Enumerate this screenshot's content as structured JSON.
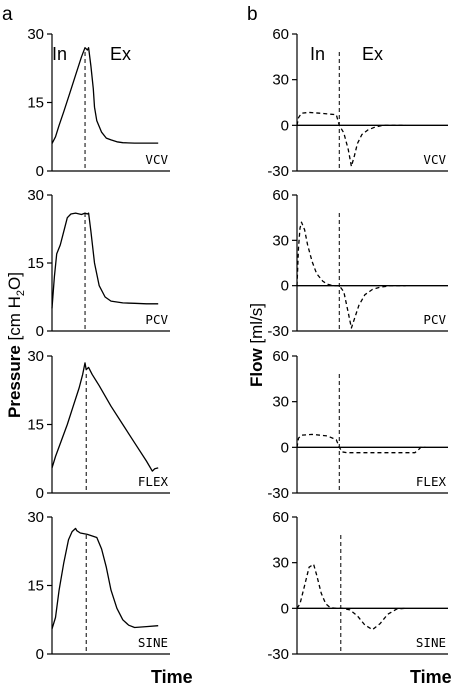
{
  "figure": {
    "panel_a": "a",
    "panel_b": "b",
    "pressure_ylabel_bold": "Pressure",
    "pressure_ylabel_rest": "[cm H",
    "pressure_ylabel_sub": "2",
    "pressure_ylabel_end": "O]",
    "flow_ylabel_bold": "Flow",
    "flow_ylabel_rest": "[ml/s]",
    "xlabel": "Time",
    "phase_in": "In",
    "phase_ex": "Ex"
  },
  "chart_data": [
    {
      "type": "line",
      "panel": "a",
      "mode": "VCV",
      "xlabel": "Time",
      "ylim": [
        0,
        30
      ],
      "yticks": [
        0,
        15,
        30
      ],
      "series": [
        {
          "style": "solid",
          "x": [
            0,
            0.03,
            0.06,
            0.1,
            0.15,
            0.2,
            0.25,
            0.28,
            0.3,
            0.31,
            0.33,
            0.35,
            0.36,
            0.38,
            0.42,
            0.46,
            0.5,
            0.55,
            0.6,
            0.7,
            0.8,
            0.9
          ],
          "y": [
            6,
            7.5,
            10,
            13,
            17,
            21,
            25,
            27,
            26.5,
            27,
            23,
            18,
            14,
            11,
            8.5,
            7.2,
            6.8,
            6.4,
            6.2,
            6.1,
            6.1,
            6.1
          ]
        }
      ],
      "divider_x": 0.28
    },
    {
      "type": "line",
      "panel": "a",
      "mode": "PCV",
      "xlabel": "Time",
      "ylim": [
        0,
        30
      ],
      "yticks": [
        0,
        15,
        30
      ],
      "series": [
        {
          "style": "solid",
          "x": [
            0,
            0.02,
            0.04,
            0.07,
            0.1,
            0.13,
            0.16,
            0.2,
            0.25,
            0.28,
            0.3,
            0.31,
            0.33,
            0.36,
            0.4,
            0.45,
            0.5,
            0.6,
            0.7,
            0.8,
            0.9
          ],
          "y": [
            5,
            12,
            17,
            19,
            22,
            25,
            25.8,
            26,
            25.7,
            26,
            25.8,
            26,
            22,
            15,
            10,
            7.5,
            6.6,
            6.2,
            6.1,
            6,
            6
          ]
        }
      ],
      "divider_x": 0.28
    },
    {
      "type": "line",
      "panel": "a",
      "mode": "FLEX",
      "xlabel": "Time",
      "ylim": [
        0,
        30
      ],
      "yticks": [
        0,
        15,
        30
      ],
      "series": [
        {
          "style": "solid",
          "x": [
            0,
            0.03,
            0.08,
            0.13,
            0.18,
            0.23,
            0.26,
            0.28,
            0.29,
            0.31,
            0.34,
            0.4,
            0.5,
            0.6,
            0.7,
            0.8,
            0.85,
            0.87,
            0.9
          ],
          "y": [
            5.5,
            8,
            11.5,
            15,
            19,
            23,
            26,
            28.5,
            27,
            27.5,
            26,
            23.5,
            19,
            15,
            11,
            7,
            4.8,
            5.3,
            5.5
          ]
        }
      ],
      "divider_x": 0.29
    },
    {
      "type": "line",
      "panel": "a",
      "mode": "SINE",
      "xlabel": "Time",
      "ylim": [
        0,
        30
      ],
      "yticks": [
        0,
        15,
        30
      ],
      "series": [
        {
          "style": "solid",
          "x": [
            0,
            0.03,
            0.06,
            0.1,
            0.14,
            0.17,
            0.2,
            0.21,
            0.24,
            0.3,
            0.38,
            0.42,
            0.46,
            0.5,
            0.55,
            0.6,
            0.65,
            0.7,
            0.8,
            0.9
          ],
          "y": [
            5.5,
            8,
            14,
            20,
            25,
            26.8,
            27.5,
            27,
            26.5,
            26.2,
            25.5,
            23,
            19,
            14,
            10,
            7.5,
            6.3,
            5.8,
            6,
            6.2
          ]
        }
      ],
      "divider_x": 0.29
    },
    {
      "type": "line",
      "panel": "b",
      "mode": "VCV",
      "xlabel": "Time",
      "ylim": [
        -30,
        60
      ],
      "yticks": [
        -30,
        0,
        30,
        60
      ],
      "series": [
        {
          "style": "solid",
          "x": [
            0,
            1
          ],
          "y": [
            0,
            0
          ]
        },
        {
          "style": "dashed",
          "x": [
            0,
            0.01,
            0.03,
            0.08,
            0.15,
            0.2,
            0.26,
            0.28,
            0.31,
            0.34,
            0.36,
            0.38,
            0.4,
            0.43,
            0.47,
            0.52,
            0.57,
            0.62,
            0.72
          ],
          "y": [
            0,
            5,
            8,
            8.5,
            8,
            7.5,
            7,
            0,
            -5,
            -16,
            -27,
            -20,
            -12,
            -6,
            -3,
            -1,
            0,
            0,
            0
          ]
        }
      ],
      "divider_x": 0.28
    },
    {
      "type": "line",
      "panel": "b",
      "mode": "PCV",
      "xlabel": "Time",
      "ylim": [
        -30,
        60
      ],
      "yticks": [
        -30,
        0,
        30,
        60
      ],
      "series": [
        {
          "style": "solid",
          "x": [
            0,
            1
          ],
          "y": [
            0,
            0
          ]
        },
        {
          "style": "dashed",
          "x": [
            0,
            0.01,
            0.02,
            0.03,
            0.05,
            0.07,
            0.1,
            0.13,
            0.17,
            0.2,
            0.24,
            0.28,
            0.31,
            0.34,
            0.36,
            0.38,
            0.41,
            0.45,
            0.5,
            0.55,
            0.62,
            0.72
          ],
          "y": [
            0,
            25,
            38,
            42,
            37,
            27,
            16,
            8,
            3,
            1,
            0,
            0,
            -4,
            -18,
            -28,
            -22,
            -13,
            -6,
            -2.5,
            -1,
            0,
            0
          ]
        }
      ],
      "divider_x": 0.28
    },
    {
      "type": "line",
      "panel": "b",
      "mode": "FLEX",
      "xlabel": "Time",
      "ylim": [
        -30,
        60
      ],
      "yticks": [
        -30,
        0,
        30,
        60
      ],
      "series": [
        {
          "style": "solid",
          "x": [
            0,
            1
          ],
          "y": [
            0,
            0
          ]
        },
        {
          "style": "dashed",
          "x": [
            0,
            0.01,
            0.03,
            0.1,
            0.2,
            0.26,
            0.28,
            0.3,
            0.33,
            0.4,
            0.5,
            0.6,
            0.7,
            0.78,
            0.8,
            0.82,
            0.85
          ],
          "y": [
            0,
            6,
            8,
            8.5,
            7.5,
            5,
            0,
            -3,
            -3.5,
            -3.5,
            -3.5,
            -3.5,
            -3.5,
            -3.5,
            -2,
            0,
            0
          ]
        }
      ],
      "divider_x": 0.28
    },
    {
      "type": "line",
      "panel": "b",
      "mode": "SINE",
      "xlabel": "Time",
      "ylim": [
        -30,
        60
      ],
      "yticks": [
        -30,
        0,
        30,
        60
      ],
      "series": [
        {
          "style": "solid",
          "x": [
            0,
            1
          ],
          "y": [
            0,
            0
          ]
        },
        {
          "style": "dashed",
          "x": [
            0,
            0.02,
            0.05,
            0.08,
            0.11,
            0.13,
            0.16,
            0.19,
            0.22,
            0.26,
            0.3,
            0.35,
            0.4,
            0.45,
            0.5,
            0.55,
            0.6,
            0.66,
            0.72
          ],
          "y": [
            0,
            3,
            15,
            27,
            29,
            22,
            10,
            3,
            0.5,
            0,
            0,
            -1,
            -5,
            -11,
            -14,
            -10,
            -4,
            -0.5,
            0
          ]
        }
      ],
      "divider_x": 0.29
    }
  ]
}
